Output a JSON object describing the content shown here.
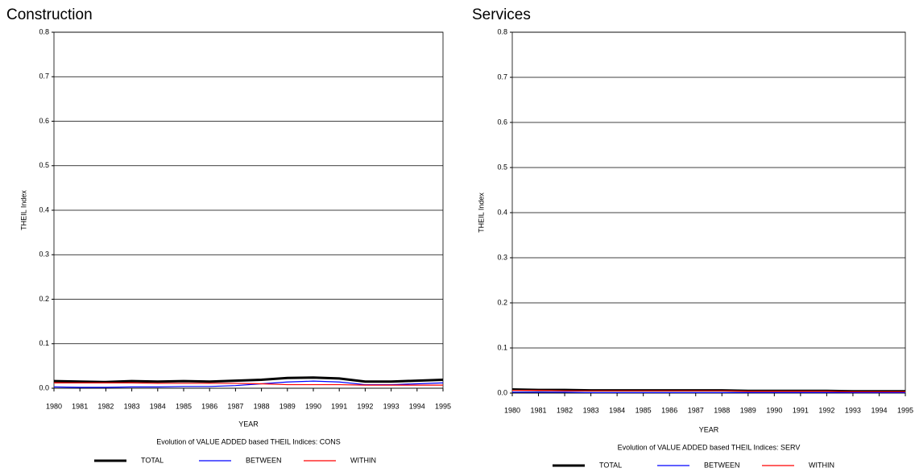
{
  "chart_data": [
    {
      "type": "line",
      "title": "Construction",
      "xlabel": "YEAR",
      "ylabel": "THEIL Index",
      "caption": "Evolution of VALUE ADDED based THEIL Indices: CONS",
      "x": [
        1980,
        1981,
        1982,
        1983,
        1984,
        1985,
        1986,
        1987,
        1988,
        1989,
        1990,
        1991,
        1992,
        1993,
        1994,
        1995
      ],
      "xlim": [
        1980,
        1995
      ],
      "xticks": [
        1980,
        1981,
        1982,
        1983,
        1984,
        1985,
        1986,
        1987,
        1988,
        1989,
        1990,
        1991,
        1992,
        1993,
        1994,
        1995
      ],
      "ylim": [
        0,
        0.8
      ],
      "yticks": [
        {
          "value": 0,
          "label": "0.0"
        },
        0.1,
        0.2,
        0.3,
        0.4,
        0.5,
        0.6,
        0.7,
        0.8
      ],
      "grid": true,
      "series": [
        {
          "name": "TOTAL",
          "color": "#000000",
          "values": [
            0.016,
            0.015,
            0.014,
            0.016,
            0.015,
            0.016,
            0.015,
            0.017,
            0.019,
            0.023,
            0.024,
            0.022,
            0.015,
            0.015,
            0.017,
            0.019
          ]
        },
        {
          "name": "BETWEEN",
          "color": "#0000ff",
          "values": [
            0.003,
            0.002,
            0.002,
            0.003,
            0.003,
            0.004,
            0.004,
            0.006,
            0.01,
            0.014,
            0.016,
            0.014,
            0.008,
            0.008,
            0.01,
            0.012
          ]
        },
        {
          "name": "WITHIN",
          "color": "#ff0000",
          "values": [
            0.012,
            0.012,
            0.012,
            0.012,
            0.011,
            0.011,
            0.011,
            0.011,
            0.01,
            0.008,
            0.008,
            0.008,
            0.007,
            0.007,
            0.007,
            0.007
          ]
        }
      ]
    },
    {
      "type": "line",
      "title": "Services",
      "xlabel": "YEAR",
      "ylabel": "THEIL Index",
      "caption": "Evolution of VALUE ADDED based THEIL Indices: SERV",
      "x": [
        1980,
        1981,
        1982,
        1983,
        1984,
        1985,
        1986,
        1987,
        1988,
        1989,
        1990,
        1991,
        1992,
        1993,
        1994,
        1995
      ],
      "xlim": [
        1980,
        1995
      ],
      "xticks": [
        1980,
        1981,
        1982,
        1983,
        1984,
        1985,
        1986,
        1987,
        1988,
        1989,
        1990,
        1991,
        1992,
        1993,
        1994,
        1995
      ],
      "ylim": [
        0,
        0.8
      ],
      "yticks": [
        {
          "value": 0,
          "label": "0.0"
        },
        0.1,
        0.2,
        0.3,
        0.4,
        0.5,
        0.6,
        0.7,
        0.8
      ],
      "grid": true,
      "series": [
        {
          "name": "TOTAL",
          "color": "#000000",
          "values": [
            0.008,
            0.007,
            0.007,
            0.006,
            0.006,
            0.006,
            0.006,
            0.006,
            0.006,
            0.005,
            0.005,
            0.005,
            0.005,
            0.004,
            0.004,
            0.004
          ]
        },
        {
          "name": "BETWEEN",
          "color": "#0000ff",
          "values": [
            0.002,
            0.002,
            0.002,
            0.001,
            0.001,
            0.001,
            0.001,
            0.001,
            0.001,
            0.001,
            0.001,
            0.001,
            0.001,
            0.001,
            0.001,
            0.001
          ]
        },
        {
          "name": "WITHIN",
          "color": "#ff0000",
          "values": [
            0.006,
            0.006,
            0.005,
            0.005,
            0.005,
            0.005,
            0.005,
            0.005,
            0.005,
            0.004,
            0.004,
            0.004,
            0.004,
            0.003,
            0.003,
            0.003
          ]
        }
      ]
    }
  ]
}
